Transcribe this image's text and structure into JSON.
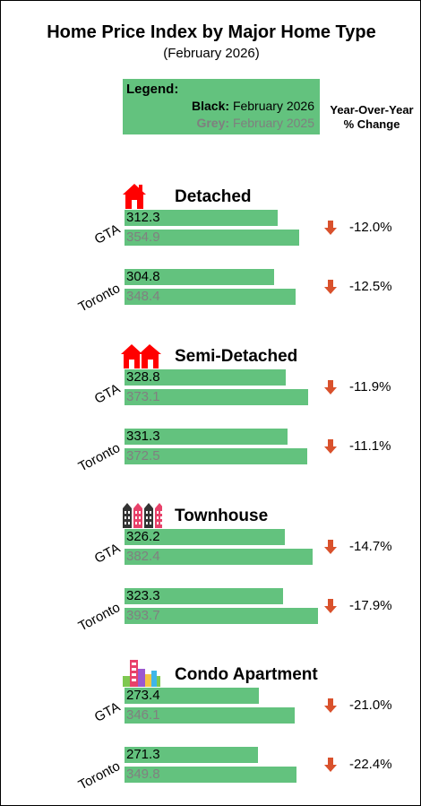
{
  "title": "Home Price Index by Major Home Type",
  "subtitle": "(February 2026)",
  "legend": {
    "heading": "Legend:",
    "current_key": "Black:",
    "current_label": "February 2026",
    "previous_key": "Grey:",
    "previous_label": "February 2025",
    "current_color": "#000000",
    "previous_color": "#808080",
    "bar_color": "#63c27e"
  },
  "yoy_header": [
    "Year-Over-Year",
    "% Change"
  ],
  "arrow_color": "#d9512c",
  "chart_data": {
    "type": "bar",
    "orientation": "horizontal",
    "series": [
      {
        "name": "February 2026"
      },
      {
        "name": "February 2025"
      }
    ],
    "groups": [
      {
        "home_type": "Detached",
        "icon": "detached-house-icon",
        "rows": [
          {
            "region": "GTA",
            "current": 312.3,
            "previous": 354.9,
            "yoy": "-12.0%"
          },
          {
            "region": "Toronto",
            "current": 304.8,
            "previous": 348.4,
            "yoy": "-12.5%"
          }
        ]
      },
      {
        "home_type": "Semi-Detached",
        "icon": "semi-detached-house-icon",
        "rows": [
          {
            "region": "GTA",
            "current": 328.8,
            "previous": 373.1,
            "yoy": "-11.9%"
          },
          {
            "region": "Toronto",
            "current": 331.3,
            "previous": 372.5,
            "yoy": "-11.1%"
          }
        ]
      },
      {
        "home_type": "Townhouse",
        "icon": "townhouse-icon",
        "rows": [
          {
            "region": "GTA",
            "current": 326.2,
            "previous": 382.4,
            "yoy": "-14.7%"
          },
          {
            "region": "Toronto",
            "current": 323.3,
            "previous": 393.7,
            "yoy": "-17.9%"
          }
        ]
      },
      {
        "home_type": "Condo Apartment",
        "icon": "condo-apartment-icon",
        "rows": [
          {
            "region": "GTA",
            "current": 273.4,
            "previous": 346.1,
            "yoy": "-21.0%"
          },
          {
            "region": "Toronto",
            "current": 271.3,
            "previous": 349.8,
            "yoy": "-22.4%"
          }
        ]
      }
    ]
  }
}
